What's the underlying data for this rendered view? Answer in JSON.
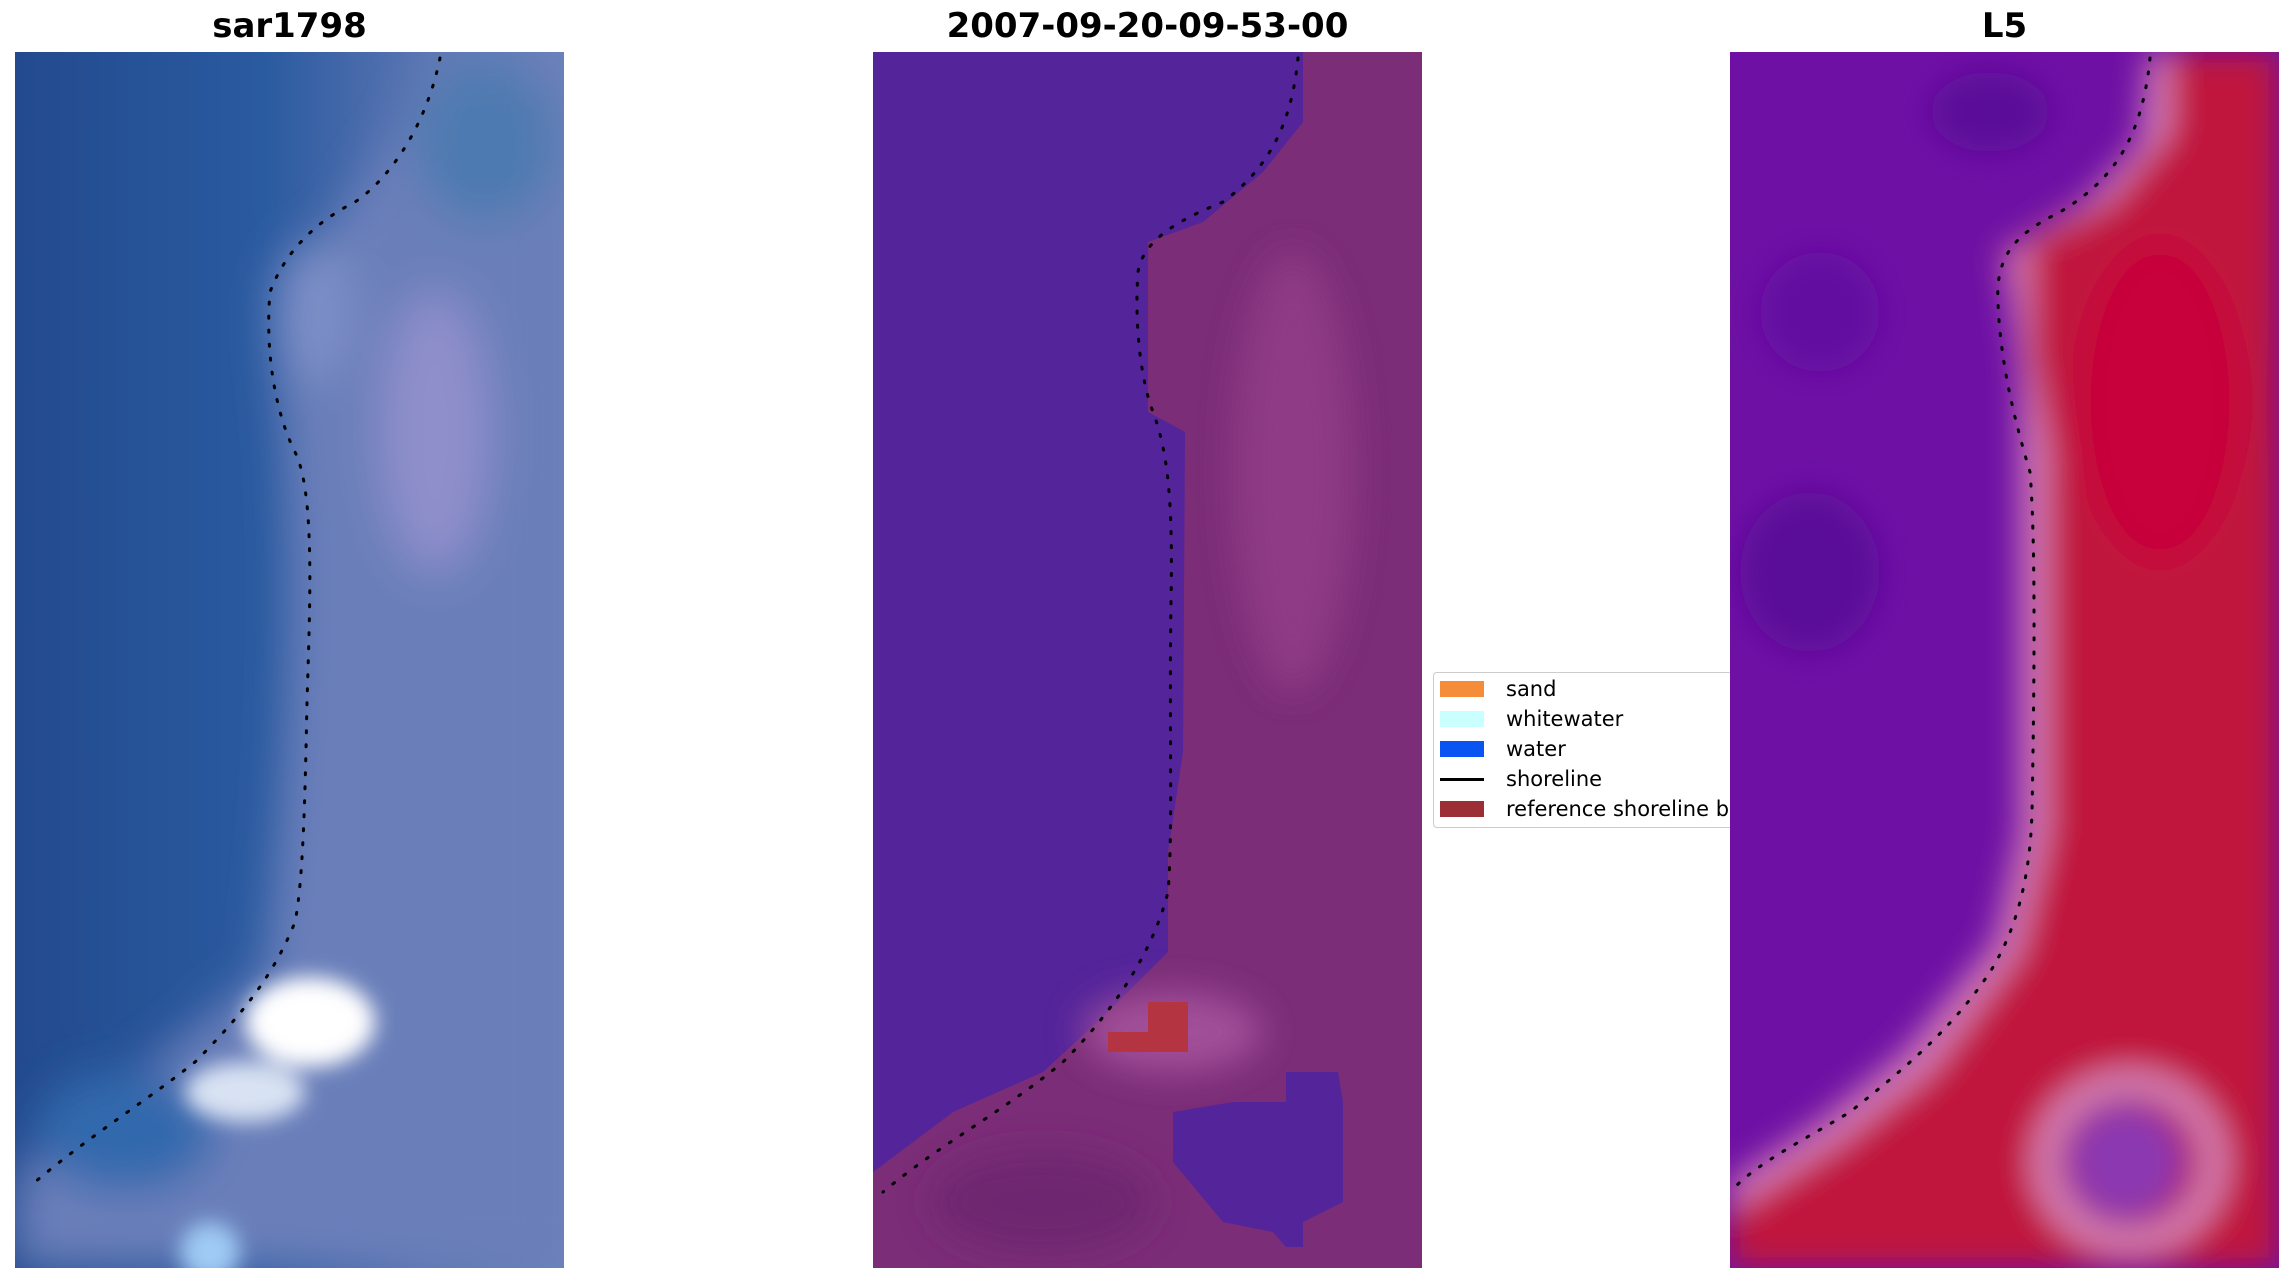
{
  "panels": {
    "left": {
      "title": "sar1798"
    },
    "middle": {
      "title": "2007-09-20-09-53-00"
    },
    "right": {
      "title": "L5"
    }
  },
  "legend": {
    "items": [
      {
        "label": "sand",
        "kind": "patch",
        "color": "#f58c3a"
      },
      {
        "label": "whitewater",
        "kind": "patch",
        "color": "#c9ffff"
      },
      {
        "label": "water",
        "kind": "patch",
        "color": "#0a55f2"
      },
      {
        "label": "shoreline",
        "kind": "line",
        "color": "#000000"
      },
      {
        "label": "reference shoreline buffer",
        "kind": "patch",
        "color": "#9b2f35"
      }
    ]
  },
  "colors": {
    "satellite_water": "#2c5596",
    "satellite_land": "#6f80b8",
    "classified_water": "#53249a",
    "classified_land": "#7b2d77",
    "classified_buffer_patch": "#b53441",
    "index_water": "#6e10a4",
    "index_land": "#c0123e",
    "shoreline_dots": "#000000"
  }
}
